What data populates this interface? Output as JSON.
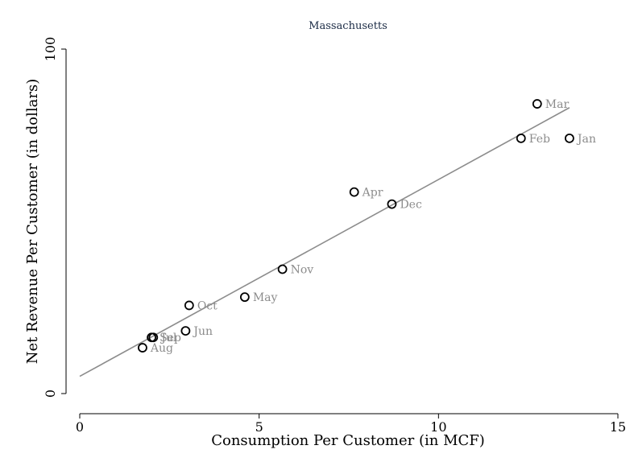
{
  "chart_data": {
    "type": "scatter",
    "title": "Massachusetts",
    "xlabel": "Consumption Per Customer (in MCF)",
    "ylabel": "Net Revenue Per Customer (in dollars)",
    "xlim": [
      0,
      15
    ],
    "ylim": [
      0,
      100
    ],
    "xticks": [
      0,
      5,
      10,
      15
    ],
    "yticks": [
      0,
      100
    ],
    "grid": false,
    "legend": "none",
    "colors": {
      "point": "#000000",
      "fit_line": "#8c8c8c",
      "point_label": "#8c8c8c",
      "title": "#1a2a44"
    },
    "points": [
      {
        "label": "Jan",
        "x": 13.65,
        "y": 74.1
      },
      {
        "label": "Feb",
        "x": 12.3,
        "y": 74.1
      },
      {
        "label": "Mar",
        "x": 12.75,
        "y": 84.1
      },
      {
        "label": "Apr",
        "x": 7.65,
        "y": 58.5
      },
      {
        "label": "May",
        "x": 4.6,
        "y": 28.0
      },
      {
        "label": "Jun",
        "x": 2.95,
        "y": 18.2
      },
      {
        "label": "Jul",
        "x": 2.05,
        "y": 16.3
      },
      {
        "label": "Aug",
        "x": 1.75,
        "y": 13.3
      },
      {
        "label": "Sep",
        "x": 2.0,
        "y": 16.3
      },
      {
        "label": "Oct",
        "x": 3.05,
        "y": 25.6
      },
      {
        "label": "Nov",
        "x": 5.65,
        "y": 36.1
      },
      {
        "label": "Dec",
        "x": 8.7,
        "y": 55.0
      }
    ],
    "fit_line": {
      "x": [
        0,
        13.65
      ],
      "y": [
        5.0,
        83.0
      ]
    }
  }
}
